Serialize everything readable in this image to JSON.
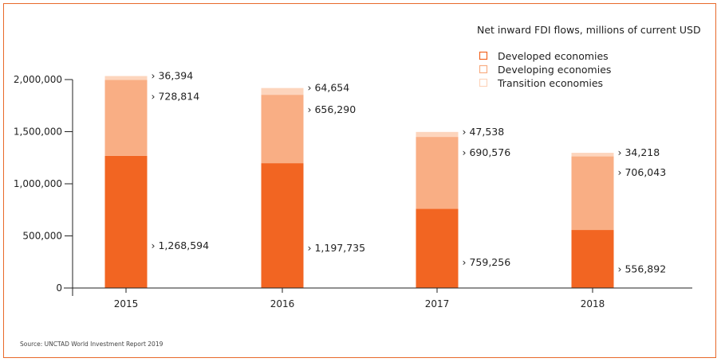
{
  "chart_data": {
    "type": "bar",
    "stacked": true,
    "title": "Net inward FDI flows, millions of current USD",
    "xlabel": "",
    "ylabel": "",
    "categories": [
      "2015",
      "2016",
      "2017",
      "2018"
    ],
    "series": [
      {
        "name": "Developed economies",
        "color": "#f26522",
        "values": [
          1268594,
          1197735,
          759256,
          556892
        ],
        "labels": [
          "1,268,594",
          "1,197,735",
          "759,256",
          "556,892"
        ]
      },
      {
        "name": "Developing economies",
        "color": "#f9ae84",
        "values": [
          728814,
          656290,
          690576,
          706043
        ],
        "labels": [
          "728,814",
          "656,290",
          "690,576",
          "706,043"
        ]
      },
      {
        "name": "Transition  economies",
        "color": "#fdd5bd",
        "values": [
          36394,
          64654,
          47538,
          34218
        ],
        "labels": [
          "36,394",
          "64,654",
          "47,538",
          "34,218"
        ]
      }
    ],
    "ylim": [
      0,
      2000000
    ],
    "yticks": [
      0,
      500000,
      1000000,
      1500000,
      2000000
    ],
    "ytick_labels": [
      "0",
      "500,000",
      "1,000,000",
      "1,500,000",
      "2,000,000"
    ],
    "grid": false,
    "legend_position": "top-right",
    "label_prefix": "›"
  },
  "source": "Source: UNCTAD World Investment Report 2019",
  "colors": {
    "frame": "#e8692a",
    "axis": "#222222"
  }
}
